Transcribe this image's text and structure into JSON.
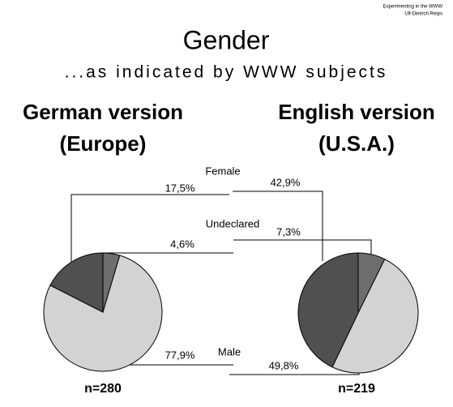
{
  "credit": [
    "Experimenting in the WWW",
    "Ulf-Dietrich Reips"
  ],
  "title": "Gender",
  "subtitle": "...as indicated by WWW subjects",
  "categories": [
    "Undeclared",
    "Male",
    "Female"
  ],
  "chart_data": [
    {
      "type": "pie",
      "title": [
        "German version",
        "(Europe)"
      ],
      "sample_size": "n=280",
      "values": [
        4.6,
        77.9,
        17.5
      ],
      "value_labels": [
        "4,6%",
        "77,9%",
        "17,5%"
      ],
      "colors": [
        "#6e6e6e",
        "#d3d3d3",
        "#505050"
      ]
    },
    {
      "type": "pie",
      "title": [
        "English version",
        "(U.S.A.)"
      ],
      "sample_size": "n=219",
      "values": [
        7.3,
        49.8,
        42.9
      ],
      "value_labels": [
        "7,3%",
        "49,8%",
        "42,9%"
      ],
      "colors": [
        "#6e6e6e",
        "#d3d3d3",
        "#505050"
      ]
    }
  ]
}
